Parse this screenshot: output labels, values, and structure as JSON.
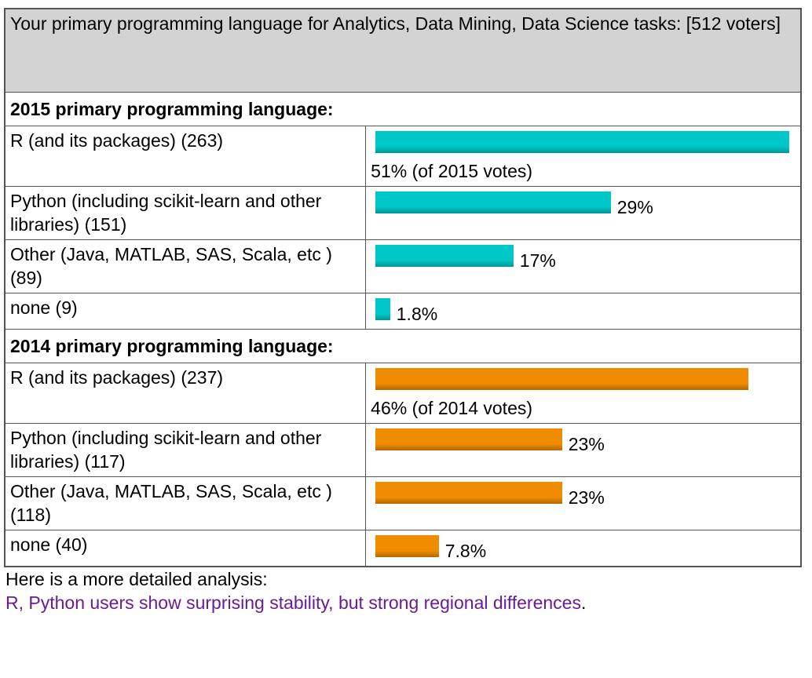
{
  "header": {
    "title": "Your primary programming language for Analytics, Data Mining, Data Science tasks: [512 voters]"
  },
  "sections": [
    {
      "title": "2015 primary programming language:",
      "color": "#00c8c8",
      "rows": [
        {
          "label": "R (and its packages) (263)",
          "value": 51,
          "value_label": "51% (of 2015 votes)"
        },
        {
          "label": "Python (including scikit-learn and other libraries) (151)",
          "value": 29,
          "value_label": "29%"
        },
        {
          "label": "Other (Java, MATLAB, SAS, Scala, etc ) (89)",
          "value": 17,
          "value_label": "17%"
        },
        {
          "label": "none (9)",
          "value": 1.8,
          "value_label": "1.8%"
        }
      ]
    },
    {
      "title": "2014 primary programming language:",
      "color": "#f08c00",
      "rows": [
        {
          "label": "R (and its packages) (237)",
          "value": 46,
          "value_label": "46% (of 2014 votes)"
        },
        {
          "label": "Python (including scikit-learn and other libraries) (117)",
          "value": 23,
          "value_label": "23%"
        },
        {
          "label": "Other (Java, MATLAB, SAS, Scala, etc ) (118)",
          "value": 23,
          "value_label": "23%"
        },
        {
          "label": "none (40)",
          "value": 7.8,
          "value_label": "7.8%"
        }
      ]
    }
  ],
  "footer": {
    "text": "Here is a more detailed analysis:",
    "link": "R, Python users show surprising stability, but strong regional differences",
    "end": "."
  }
}
